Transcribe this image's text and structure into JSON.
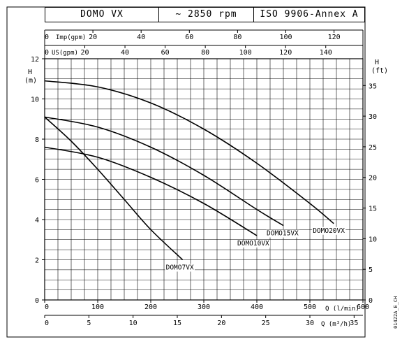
{
  "header": {
    "model": "DOMO VX",
    "speed": "~ 2850 rpm",
    "standard": "ISO 9906-Annex A"
  },
  "axes": {
    "left_label_1": "H",
    "left_label_2": "(m)",
    "right_label_1": "H",
    "right_label_2": "(ft)",
    "top1_label": "Imp(gpm)",
    "top2_label": "US(gpm)",
    "bottom1_label": "Q (l/min)",
    "bottom2_label": "Q (m³/h)",
    "code": "01422A_E_CH"
  },
  "colors": {
    "line": "#000000",
    "grid": "#000000"
  },
  "chart_data": {
    "type": "line",
    "xlabel": "Q (l/min)",
    "ylabel": "H (m)",
    "xlim": [
      0,
      600
    ],
    "ylim": [
      0,
      12
    ],
    "grid": true,
    "x_ticks": [
      0,
      100,
      200,
      300,
      400,
      500,
      600
    ],
    "y_ticks": [
      0,
      2,
      4,
      6,
      8,
      10,
      12
    ],
    "secondary_axes": {
      "right_ft_ticks": [
        0,
        5,
        10,
        15,
        20,
        25,
        30,
        35
      ],
      "top_imp_gpm_ticks": [
        0,
        20,
        40,
        60,
        80,
        100,
        120
      ],
      "top_us_gpm_ticks": [
        0,
        20,
        40,
        60,
        80,
        100,
        120,
        140
      ],
      "bottom_m3h_ticks": [
        0,
        5,
        10,
        15,
        20,
        25,
        30,
        35
      ]
    },
    "series": [
      {
        "name": "DOMO7VX",
        "x": [
          0,
          50,
          100,
          150,
          200,
          260
        ],
        "y": [
          9.1,
          7.9,
          6.5,
          5.0,
          3.5,
          2.0
        ]
      },
      {
        "name": "DOMO10VX",
        "x": [
          0,
          100,
          200,
          300,
          400
        ],
        "y": [
          7.6,
          7.1,
          6.1,
          4.8,
          3.2
        ]
      },
      {
        "name": "DOMO15VX",
        "x": [
          0,
          100,
          200,
          300,
          400,
          450
        ],
        "y": [
          9.1,
          8.6,
          7.6,
          6.2,
          4.5,
          3.7
        ]
      },
      {
        "name": "DOMO20VX",
        "x": [
          0,
          100,
          200,
          300,
          400,
          500,
          545
        ],
        "y": [
          10.9,
          10.6,
          9.8,
          8.5,
          6.8,
          4.8,
          3.8
        ]
      }
    ]
  }
}
